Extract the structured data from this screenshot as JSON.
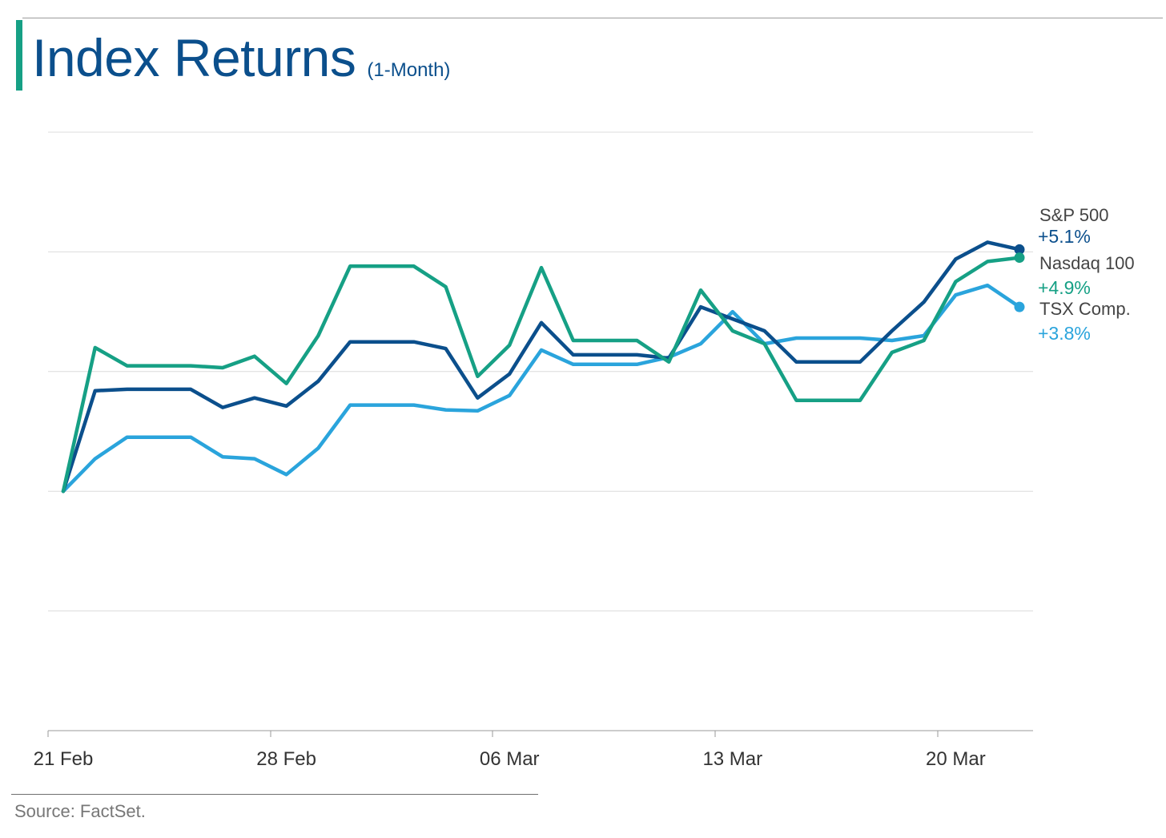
{
  "title": "Index Returns",
  "subtitle": "(1-Month)",
  "source": "Source: FactSet.",
  "chart_data": {
    "type": "line",
    "x_labels": [
      "21 Feb",
      "28 Feb",
      "06 Mar",
      "13 Mar",
      "20 Mar"
    ],
    "x_label_positions": [
      0,
      7,
      14,
      21,
      28
    ],
    "x": [
      0,
      1,
      2,
      3,
      4,
      5,
      6,
      7,
      8,
      9,
      10,
      11,
      12,
      13,
      14,
      15,
      16,
      17,
      18,
      19,
      20,
      21,
      22,
      23,
      24,
      25,
      26,
      27,
      28,
      29,
      30
    ],
    "ylim": [
      -5,
      7.5
    ],
    "yticks": [
      -5,
      -2.5,
      0,
      2.5,
      5,
      7.5
    ],
    "grid": true,
    "legend": "right-end-labels",
    "series": [
      {
        "name": "S&P 500",
        "end_label": "+5.1%",
        "color": "#0b4f8c",
        "values": [
          0.0,
          2.1,
          2.13,
          2.13,
          2.13,
          1.75,
          1.95,
          1.78,
          2.3,
          3.12,
          3.12,
          3.12,
          2.98,
          1.95,
          2.45,
          3.52,
          2.85,
          2.85,
          2.85,
          2.78,
          3.85,
          3.6,
          3.35,
          2.7,
          2.7,
          2.7,
          3.35,
          3.95,
          4.85,
          5.2,
          5.05
        ]
      },
      {
        "name": "Nasdaq 100",
        "end_label": "+4.9%",
        "color": "#16a085",
        "values": [
          0.0,
          3.0,
          2.62,
          2.62,
          2.62,
          2.58,
          2.82,
          2.25,
          3.25,
          4.7,
          4.7,
          4.7,
          4.27,
          2.4,
          3.05,
          4.67,
          3.15,
          3.15,
          3.15,
          2.7,
          4.2,
          3.35,
          3.08,
          1.9,
          1.9,
          1.9,
          2.9,
          3.15,
          4.38,
          4.8,
          4.88
        ]
      },
      {
        "name": "TSX Comp.",
        "end_label": "+3.8%",
        "color": "#2aa4dc",
        "values": [
          0.0,
          0.68,
          1.13,
          1.13,
          1.13,
          0.72,
          0.68,
          0.35,
          0.9,
          1.8,
          1.8,
          1.8,
          1.7,
          1.68,
          2.0,
          2.95,
          2.65,
          2.65,
          2.65,
          2.8,
          3.08,
          3.75,
          3.08,
          3.2,
          3.2,
          3.2,
          3.15,
          3.25,
          4.1,
          4.3,
          3.85
        ]
      }
    ]
  }
}
